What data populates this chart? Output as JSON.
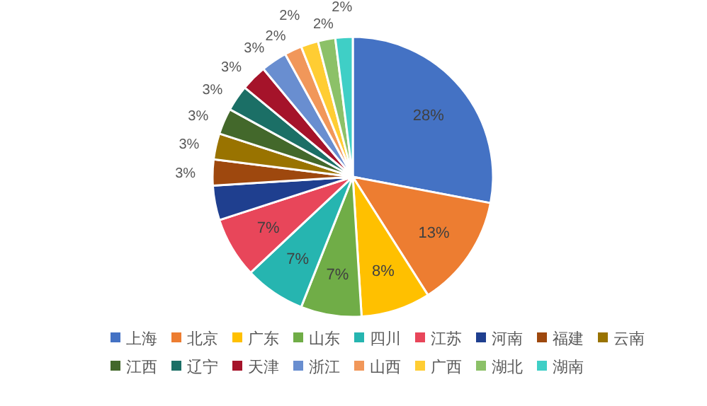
{
  "chart_data": {
    "type": "pie",
    "categories": [
      "上海",
      "北京",
      "广东",
      "山东",
      "四川",
      "江苏",
      "河南",
      "福建",
      "云南",
      "江西",
      "辽宁",
      "天津",
      "浙江",
      "山西",
      "广西",
      "湖北",
      "湖南"
    ],
    "values": [
      28,
      13,
      8,
      7,
      7,
      7,
      4,
      3,
      3,
      3,
      3,
      3,
      3,
      2,
      2,
      2,
      2
    ],
    "colors": [
      "#4472c4",
      "#ed7d31",
      "#ffc000",
      "#70ad47",
      "#26b5b0",
      "#e8465a",
      "#1f3f8f",
      "#9e480e",
      "#997300",
      "#43682b",
      "#1b6f66",
      "#a5132a",
      "#698ed0",
      "#f1975a",
      "#ffcd33",
      "#8cc168",
      "#3fcfc6"
    ],
    "value_labels": [
      "28%",
      "13%",
      "8%",
      "7%",
      "7%",
      "7%",
      null,
      "3%",
      "3%",
      "3%",
      "3%",
      "3%",
      "3%",
      "2%",
      "2%",
      "2%",
      "2%"
    ],
    "legend": "bottom"
  }
}
